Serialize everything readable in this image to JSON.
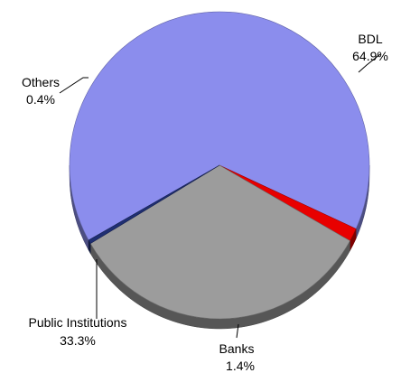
{
  "chart_data": {
    "type": "pie",
    "title": "",
    "slices": [
      {
        "label": "BDL",
        "percent_label": "64.9%",
        "value": 64.9,
        "color": "#8b8ded"
      },
      {
        "label": "Banks",
        "percent_label": "1.4%",
        "value": 1.4,
        "color": "#e80000"
      },
      {
        "label": "Public Institutions",
        "percent_label": "33.3%",
        "value": 33.3,
        "color": "#9c9c9c"
      },
      {
        "label": "Others",
        "percent_label": "0.4%",
        "value": 0.4,
        "color": "#1f2f73"
      }
    ],
    "legend": "none",
    "style": "3d-tilted"
  }
}
